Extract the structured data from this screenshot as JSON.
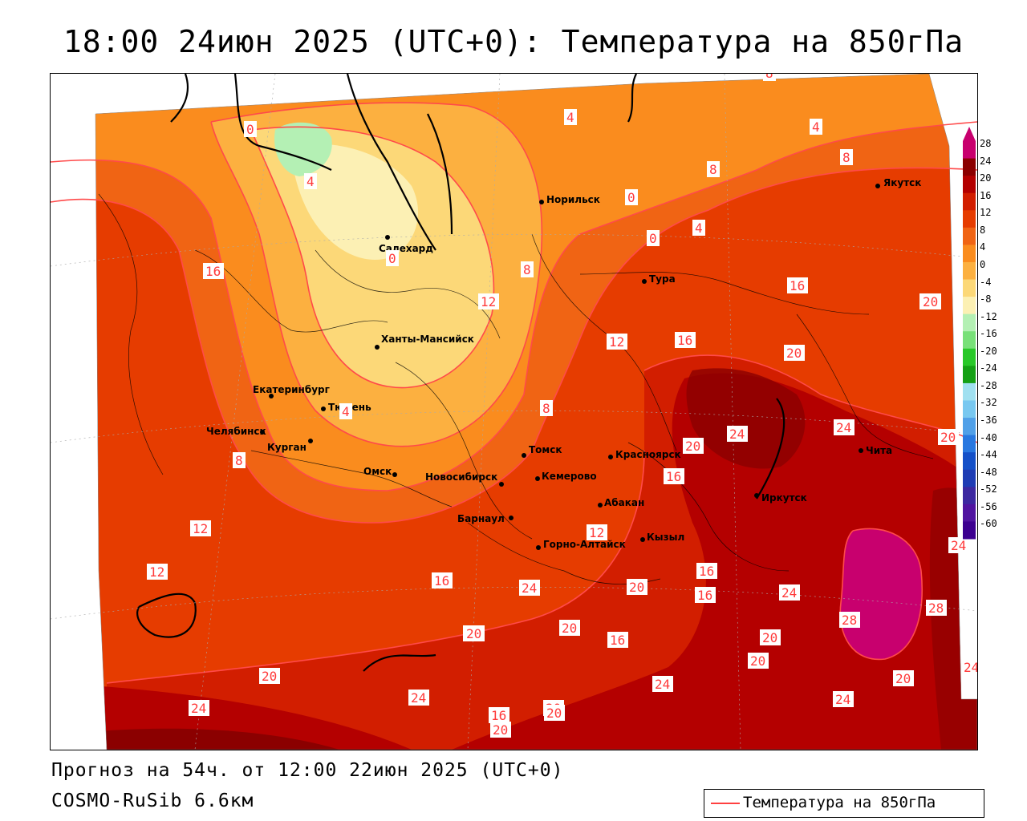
{
  "title": "18:00 24июн 2025 (UTC+0): Температура на 850гПа",
  "footer": {
    "forecast": "Прогноз на 54ч. от 12:00 22июн 2025 (UTC+0)",
    "model": "COSMO-RuSib 6.6км"
  },
  "legend": {
    "label": "Температура на 850гПа",
    "line_color": "#ff4040"
  },
  "colorbar": {
    "labels": [
      "28",
      "24",
      "20",
      "16",
      "12",
      "8",
      "4",
      "0",
      "-4",
      "-8",
      "-12",
      "-16",
      "-20",
      "-24",
      "-28",
      "-32",
      "-36",
      "-40",
      "-44",
      "-48",
      "-52",
      "-56",
      "-60"
    ],
    "colors": [
      "#c8006e",
      "#8b0000",
      "#b40000",
      "#d21e00",
      "#e63c00",
      "#f06414",
      "#fa8c1e",
      "#fcb040",
      "#fcd878",
      "#fcf0b4",
      "#b4f0b4",
      "#78e078",
      "#28c828",
      "#14a014",
      "#a0e0f0",
      "#78c8f0",
      "#50a0e8",
      "#2878e0",
      "#1450c8",
      "#1e3cb4",
      "#3c28a0",
      "#5014a0",
      "#3c0090"
    ]
  },
  "cities": [
    {
      "name": "Якутск"
    },
    {
      "name": "Норильск"
    },
    {
      "name": "Салехард"
    },
    {
      "name": "Тура"
    },
    {
      "name": "Ханты-Мансийск"
    },
    {
      "name": "Екатеринбург"
    },
    {
      "name": "Тюмень"
    },
    {
      "name": "Челябинск"
    },
    {
      "name": "Курган"
    },
    {
      "name": "Омск"
    },
    {
      "name": "Томск"
    },
    {
      "name": "Красноярск"
    },
    {
      "name": "Кемерово"
    },
    {
      "name": "Новосибирск"
    },
    {
      "name": "Абакан"
    },
    {
      "name": "Барнаул"
    },
    {
      "name": "Кызыл"
    },
    {
      "name": "Горно-Алтайск"
    },
    {
      "name": "Иркутск"
    },
    {
      "name": "Чита"
    }
  ],
  "contour_labels": [
    "0",
    "4",
    "4",
    "8",
    "4",
    "8",
    "8",
    "0",
    "0",
    "4",
    "0",
    "8",
    "12",
    "16",
    "16",
    "12",
    "12",
    "16",
    "20",
    "20",
    "24",
    "8",
    "4",
    "20",
    "24",
    "20",
    "16",
    "12",
    "12",
    "16",
    "8",
    "20",
    "24",
    "12",
    "16",
    "20",
    "16",
    "20",
    "24",
    "28",
    "28",
    "24",
    "20",
    "20",
    "16",
    "20",
    "24",
    "20",
    "24",
    "20",
    "24",
    "16",
    "20",
    "20",
    "24",
    "20",
    "24"
  ]
}
